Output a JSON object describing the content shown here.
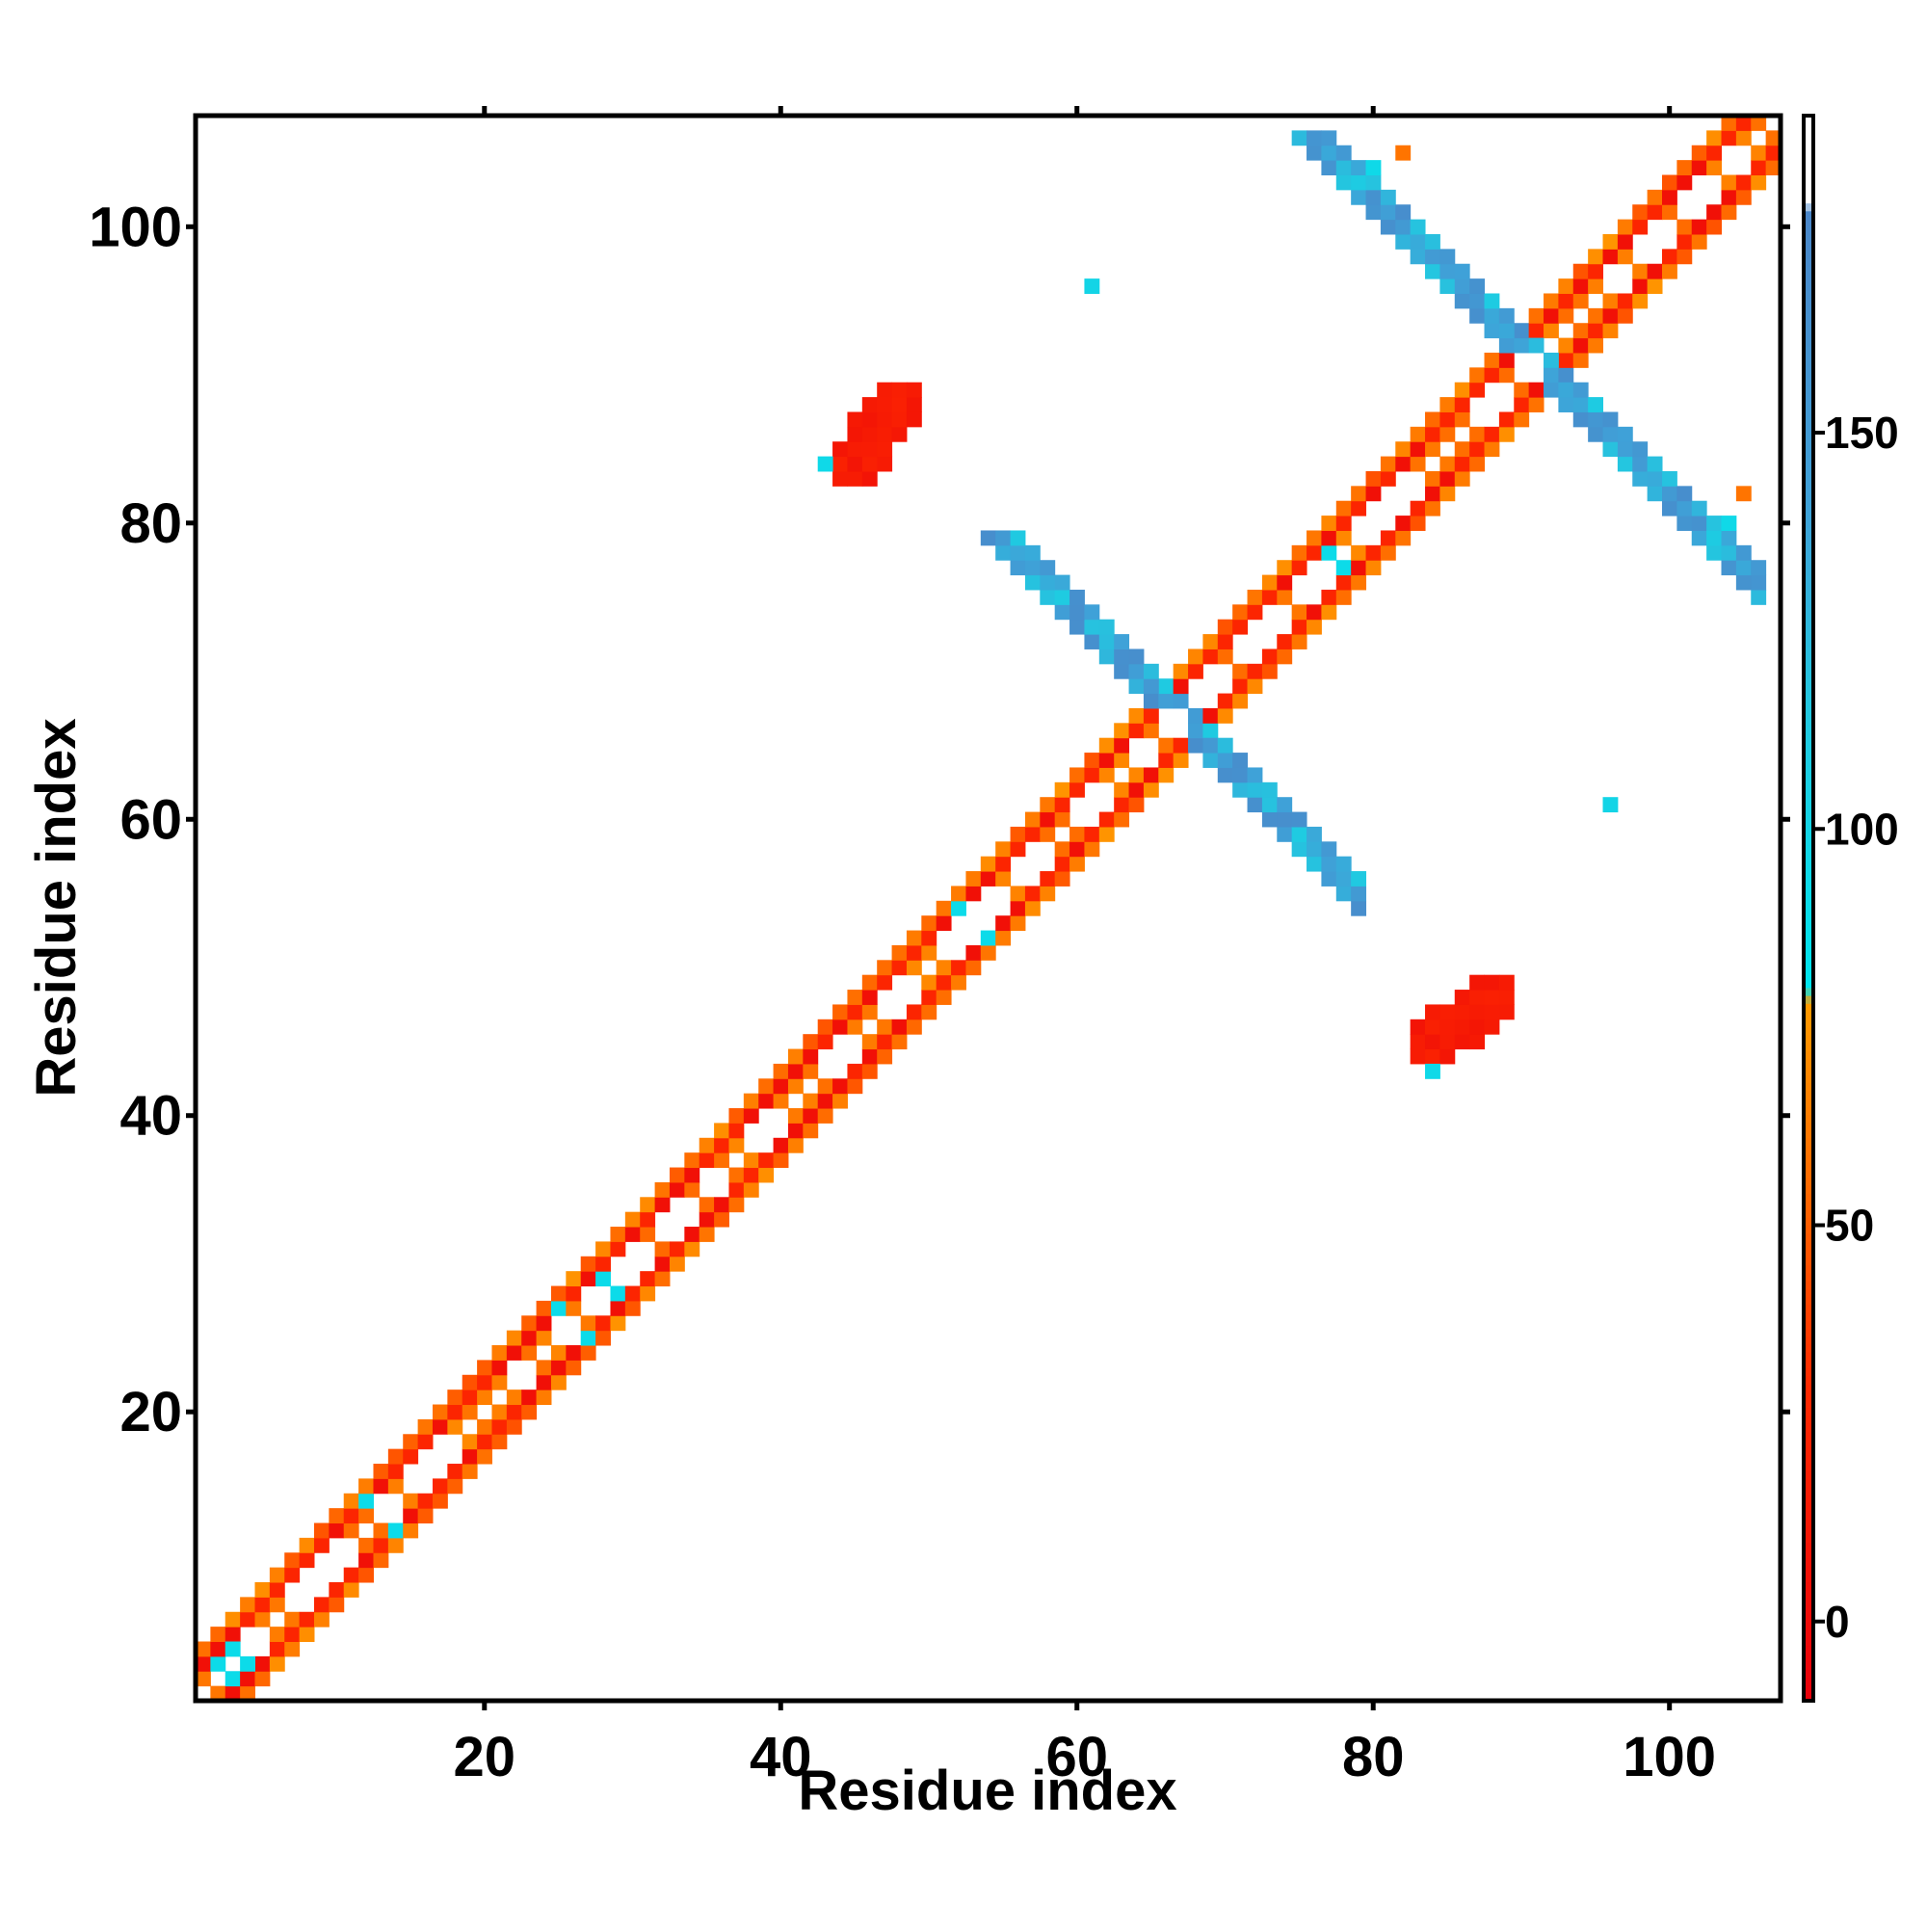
{
  "chart_data": {
    "type": "heatmap",
    "xlabel": "Residue index",
    "ylabel": "Residue index",
    "xlim": [
      0.5,
      107.5
    ],
    "ylim": [
      0.5,
      107.5
    ],
    "x_ticks": [
      20,
      40,
      60,
      80,
      100
    ],
    "y_ticks": [
      20,
      40,
      60,
      80,
      100
    ],
    "colorbar": {
      "range": [
        -10,
        190
      ],
      "ticks": [
        0,
        50,
        100,
        150
      ],
      "stops": [
        {
          "value": -10,
          "color": "#e8000b"
        },
        {
          "value": 30,
          "color": "#ff2a00"
        },
        {
          "value": 55,
          "color": "#ff6a00"
        },
        {
          "value": 78,
          "color": "#ff9a00"
        },
        {
          "value": 80,
          "color": "#00e5ee"
        },
        {
          "value": 115,
          "color": "#22c8e0"
        },
        {
          "value": 140,
          "color": "#3fa2d8"
        },
        {
          "value": 178,
          "color": "#4a86c8"
        },
        {
          "value": 179,
          "color": "#ffffff"
        },
        {
          "value": 190,
          "color": "#ffffff"
        }
      ]
    },
    "regions": [
      {
        "name": "main diagonal band",
        "residues": [
          1,
          107
        ],
        "values": "alternating 0-75"
      },
      {
        "name": "antiparallel contact 60-80 x 60-80",
        "center": [
          67,
          67
        ],
        "values": "100-150"
      },
      {
        "name": "antiparallel contact 85-107 x 85-107",
        "center": [
          91,
          91
        ],
        "values": "100-150"
      },
      {
        "name": "off-diagonal contact",
        "x": [
          44,
          49
        ],
        "y": [
          83,
          89
        ],
        "values": "~10"
      },
      {
        "name": "off-diagonal contact",
        "x": [
          83,
          89
        ],
        "y": [
          44,
          49
        ],
        "values": "~10"
      }
    ]
  }
}
